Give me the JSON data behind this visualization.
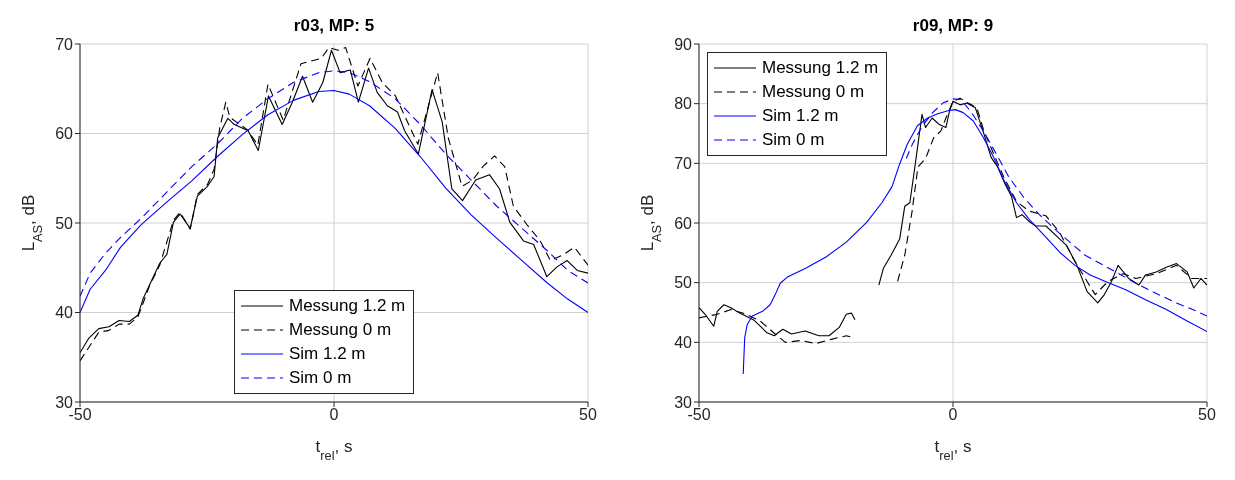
{
  "chart_data": [
    {
      "type": "line",
      "title": "r03, MP: 5",
      "xlabel": "t$_{rel}$, s",
      "ylabel": "L$_{AS}$, dB",
      "xlim": [
        -50,
        50
      ],
      "xticks": [
        -50,
        0,
        50
      ],
      "ylim": [
        30,
        70
      ],
      "yticks": [
        30,
        40,
        50,
        60,
        70
      ],
      "grid": true,
      "legend": "bottom",
      "marker": "none",
      "series": [
        {
          "name": "Messung 1.2 m",
          "color": "#000000",
          "line_style": "solid",
          "x": [
            -50,
            -48.3,
            -46.3,
            -44.3,
            -42.3,
            -40.3,
            -38.6,
            -37.6,
            -36.3,
            -34.3,
            -32.9,
            -31.6,
            -30.3,
            -28.3,
            -26.9,
            -24.9,
            -23.6,
            -22.9,
            -20.9,
            -19.6,
            -16.9,
            -14.9,
            -12.9,
            -10.2,
            -8.2,
            -6.2,
            -4.2,
            -2.2,
            -0.5,
            1.2,
            3.2,
            4.8,
            6.8,
            8.5,
            10.5,
            12.5,
            13.9,
            16.6,
            19.3,
            21.3,
            23.2,
            25.3,
            27.9,
            30.6,
            32.6,
            34.6,
            37.3,
            39.3,
            41.9,
            43.9,
            45.9,
            47.9,
            50
          ],
          "values": [
            35.5,
            37.1,
            38.2,
            38.4,
            39.1,
            39.0,
            39.7,
            41.5,
            43.1,
            45.5,
            46.5,
            50.1,
            51.0,
            49.4,
            53.0,
            54.1,
            55.2,
            59.5,
            61.7,
            61.0,
            60.3,
            58.1,
            64.2,
            61.0,
            63.5,
            66.4,
            63.5,
            65.7,
            69.3,
            66.8,
            67.1,
            63.5,
            67.3,
            64.6,
            63.1,
            62.4,
            60.3,
            57.7,
            64.9,
            61.3,
            53.8,
            52.5,
            54.8,
            55.4,
            53.8,
            50.1,
            48.0,
            47.6,
            44.0,
            45.1,
            45.8,
            44.7,
            44.4
          ]
        },
        {
          "name": "Messung 0 m",
          "color": "#000000",
          "line_style": "dashed",
          "x": [
            -50,
            -46.3,
            -44.3,
            -42.3,
            -40.3,
            -38.6,
            -36.3,
            -34.3,
            -31.6,
            -30.3,
            -28.3,
            -26.9,
            -24.9,
            -23.6,
            -22.5,
            -21.3,
            -20.5,
            -17,
            -15,
            -13,
            -10,
            -6.5,
            -2.5,
            -1,
            0.8,
            2.3,
            4.7,
            7.1,
            9.5,
            12.1,
            16.5,
            20.4,
            22.5,
            25.2,
            27.3,
            29.3,
            31.6,
            33.6,
            35.3,
            38.0,
            40.6,
            42.6,
            45.3,
            47.3,
            50
          ],
          "values": [
            34.6,
            37.8,
            38.0,
            38.7,
            38.7,
            39.5,
            43.0,
            45.3,
            50.3,
            51.2,
            49.3,
            53.2,
            54.3,
            56.0,
            60.6,
            63.5,
            61.8,
            60.4,
            58.7,
            65.5,
            61.5,
            67.8,
            68.4,
            69.6,
            69.3,
            69.6,
            65.3,
            68.4,
            65.7,
            64.2,
            58.8,
            66.8,
            59.5,
            54.1,
            54.8,
            56.3,
            57.5,
            56.3,
            51.9,
            49.8,
            48.0,
            45.8,
            46.5,
            47.3,
            45.3
          ]
        },
        {
          "name": "Sim 1.2 m",
          "color": "#0000ff",
          "line_style": "solid",
          "x": [
            -50,
            -48,
            -45,
            -42,
            -38,
            -33,
            -28,
            -23,
            -18,
            -13,
            -8,
            -3,
            0,
            3,
            7,
            12,
            17,
            22,
            27,
            32,
            37,
            42,
            46,
            50
          ],
          "values": [
            40.0,
            42.6,
            44.7,
            47.3,
            49.8,
            52.3,
            54.7,
            57.4,
            59.9,
            62.1,
            63.7,
            64.7,
            64.8,
            64.4,
            63.1,
            60.6,
            57.4,
            53.9,
            50.9,
            48.3,
            45.8,
            43.3,
            41.5,
            40.0
          ]
        },
        {
          "name": "Sim 0 m",
          "color": "#0000ff",
          "line_style": "dashed",
          "x": [
            -50,
            -48,
            -45,
            -42,
            -38,
            -33,
            -28,
            -23,
            -18,
            -13,
            -8,
            -3,
            0,
            3,
            7,
            12,
            17,
            22,
            27,
            32,
            37,
            42,
            46,
            50
          ],
          "values": [
            41.8,
            44.4,
            46.6,
            48.4,
            50.5,
            53.4,
            56.3,
            58.8,
            61.7,
            63.9,
            65.7,
            66.8,
            67.0,
            66.8,
            65.8,
            63.9,
            61.0,
            57.7,
            54.8,
            51.9,
            49.4,
            46.9,
            44.7,
            43.3
          ]
        }
      ]
    },
    {
      "type": "line",
      "title": "r09, MP: 9",
      "xlabel": "t$_{rel}$, s",
      "ylabel": "L$_{AS}$, dB",
      "xlim": [
        -50,
        50
      ],
      "xticks": [
        -50,
        0,
        50
      ],
      "ylim": [
        30,
        90
      ],
      "yticks": [
        30,
        40,
        50,
        60,
        70,
        80,
        90
      ],
      "grid": true,
      "legend": "top left",
      "marker": "none",
      "series": [
        {
          "name": "Messung 1.2 m",
          "color": "#000000",
          "line_style": "solid",
          "x": [
            -50,
            -48.8,
            -47.1,
            -46.4,
            -45.1,
            -43.7,
            -42.0,
            -39.3,
            -36.6,
            -35.2,
            -33.5,
            -31.8,
            -29.1,
            -26.4,
            -24.4,
            -22.4,
            -21.0,
            -20.0,
            -19.3,
            -17,
            -14.6,
            -13.7,
            -12.2,
            -10.5,
            -9.5,
            -8.5,
            -7.5,
            -6.1,
            -5.4,
            -4.1,
            -2.7,
            -1.4,
            -0.7,
            0,
            1.4,
            2.7,
            4.4,
            6.1,
            7.5,
            8.8,
            10.2,
            11.5,
            12.5,
            13.6,
            14.9,
            16.3,
            18.3,
            20.3,
            22.4,
            24.4,
            26.4,
            28.5,
            29.8,
            31.2,
            32.5,
            34.6,
            36.6,
            37.9,
            40.0,
            42.0,
            44.0,
            46.1,
            47.4,
            48.8,
            50
          ],
          "values": [
            45.8,
            44.7,
            42.7,
            45.2,
            46.3,
            45.8,
            44.9,
            43.8,
            41.6,
            41.1,
            42.2,
            41.4,
            41.9,
            41.1,
            41.1,
            42.5,
            44.7,
            44.9,
            43.8,
            null,
            49.6,
            52.4,
            54.6,
            57.3,
            62.8,
            63.4,
            69.4,
            78.2,
            76.0,
            77.6,
            76.5,
            76.0,
            78.7,
            80.4,
            79.8,
            80.1,
            79.3,
            74.9,
            71.0,
            69.4,
            66.6,
            64.5,
            60.9,
            61.4,
            60.3,
            59.5,
            59.5,
            57.9,
            56.2,
            52.9,
            48.5,
            46.6,
            48.0,
            50.2,
            52.9,
            50.7,
            49.6,
            51.3,
            51.8,
            52.6,
            53.2,
            51.8,
            49.1,
            50.7,
            49.6
          ]
        },
        {
          "name": "Messung 0 m",
          "color": "#000000",
          "line_style": "dashed",
          "x": [
            -50,
            -46.4,
            -43.7,
            -41,
            -38,
            -35,
            -33,
            -30,
            -27,
            -24,
            -21,
            -19.5,
            -17,
            -10.9,
            -9.5,
            -8.1,
            -6.9,
            -5.4,
            -3.8,
            -2.4,
            -1.4,
            0,
            1.4,
            3,
            4.7,
            6.1,
            8,
            10,
            12.5,
            15,
            18.3,
            21,
            23.7,
            26.4,
            28,
            30.5,
            33.5,
            36,
            40,
            44,
            47,
            50
          ],
          "values": [
            44.1,
            44.7,
            45.5,
            44.8,
            43.6,
            41.4,
            40.0,
            40.3,
            39.8,
            40.5,
            41.1,
            40.8,
            null,
            50.2,
            54.6,
            61.7,
            69.4,
            70.8,
            74.3,
            75.4,
            77.6,
            80.4,
            80.9,
            80.1,
            79.3,
            75.4,
            71.6,
            67.7,
            63.6,
            62.0,
            61.2,
            58.4,
            54.0,
            50.2,
            48.0,
            50.2,
            51.5,
            50.7,
            51.5,
            52.9,
            50.7,
            50.7
          ]
        },
        {
          "name": "Sim 1.2 m",
          "color": "#0000ff",
          "line_style": "solid",
          "x": [
            -41.3,
            -41.0,
            -40.5,
            -39.5,
            -37.5,
            -36.0,
            -35.0,
            -34.0,
            -32.5,
            -29,
            -25,
            -21,
            -17,
            -14,
            -12,
            -10.5,
            -9,
            -7,
            -5,
            -3,
            -1,
            0.5,
            2,
            4,
            6,
            8,
            10,
            12.5,
            15,
            18,
            21,
            24,
            27,
            30,
            34,
            38,
            42,
            46,
            50
          ],
          "values": [
            34.7,
            40.8,
            43.0,
            44.4,
            45.2,
            46.3,
            48.0,
            49.9,
            51.0,
            52.4,
            54.3,
            56.8,
            60.1,
            63.4,
            66.1,
            69.9,
            73.2,
            76.3,
            77.6,
            78.3,
            78.8,
            79.0,
            78.5,
            77.1,
            74.3,
            71.0,
            67.2,
            63.4,
            60.6,
            57.9,
            55.1,
            52.9,
            51.3,
            50.2,
            48.8,
            47.1,
            45.5,
            43.6,
            41.8
          ]
        },
        {
          "name": "Sim 0 m",
          "color": "#0000ff",
          "line_style": "dashed",
          "x": [
            -9.2,
            -8,
            -6,
            -4,
            -2,
            0,
            1.5,
            3.5,
            6,
            8.5,
            11,
            14,
            17,
            20,
            23,
            26,
            29,
            32,
            36,
            40,
            44,
            48,
            50
          ],
          "values": [
            70.8,
            73.2,
            76.3,
            78.5,
            80.1,
            80.8,
            80.7,
            78.7,
            75.4,
            71.6,
            67.7,
            64.2,
            61.4,
            59.0,
            56.8,
            54.6,
            53.2,
            51.8,
            49.9,
            48.2,
            46.6,
            45.2,
            44.4
          ]
        }
      ]
    }
  ]
}
